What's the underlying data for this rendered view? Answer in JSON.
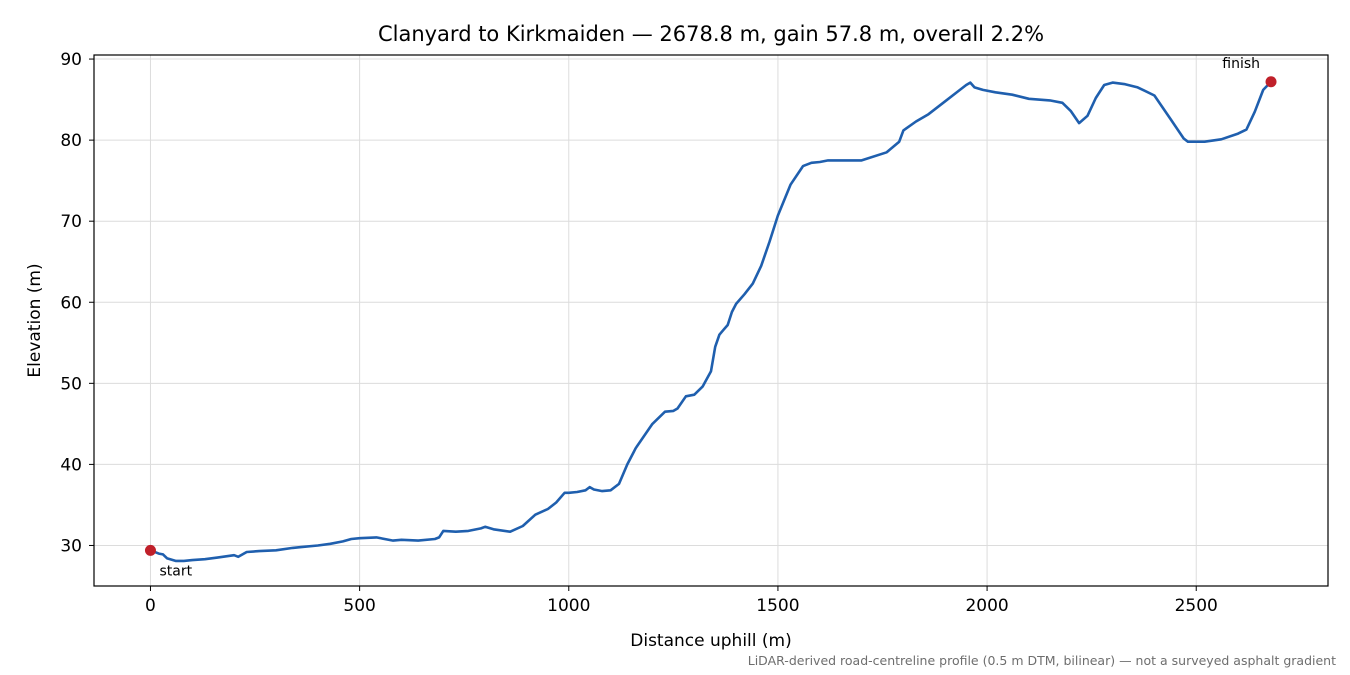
{
  "chart_data": {
    "type": "line",
    "title": "Clanyard to Kirkmaiden — 2678.8 m, gain 57.8 m, overall 2.2%",
    "xlabel": "Distance uphill (m)",
    "ylabel": "Elevation (m)",
    "xlim": [
      -135,
      2815
    ],
    "ylim": [
      25,
      90.5
    ],
    "grid": true,
    "x_ticks": [
      0,
      500,
      1000,
      1500,
      2000,
      2500
    ],
    "y_ticks": [
      30,
      40,
      50,
      60,
      70,
      80,
      90
    ],
    "x_tick_labels": [
      "0",
      "500",
      "1000",
      "1500",
      "2000",
      "2500"
    ],
    "y_tick_labels": [
      "30",
      "40",
      "50",
      "60",
      "70",
      "80",
      "90"
    ],
    "series": [
      {
        "color": "#1f5fae",
        "x": [
          0,
          20,
          30,
          40,
          60,
          80,
          100,
          130,
          160,
          200,
          210,
          230,
          260,
          300,
          340,
          360,
          400,
          430,
          460,
          480,
          500,
          540,
          580,
          600,
          640,
          680,
          690,
          700,
          730,
          760,
          790,
          800,
          820,
          860,
          890,
          920,
          950,
          970,
          990,
          1000,
          1020,
          1040,
          1050,
          1060,
          1080,
          1100,
          1120,
          1140,
          1160,
          1200,
          1230,
          1250,
          1260,
          1280,
          1300,
          1320,
          1340,
          1350,
          1360,
          1370,
          1380,
          1390,
          1400,
          1420,
          1440,
          1460,
          1480,
          1500,
          1530,
          1560,
          1580,
          1600,
          1620,
          1650,
          1700,
          1760,
          1790,
          1800,
          1830,
          1860,
          1900,
          1930,
          1950,
          1960,
          1970,
          1990,
          2020,
          2060,
          2100,
          2150,
          2180,
          2200,
          2220,
          2240,
          2260,
          2280,
          2300,
          2330,
          2360,
          2400,
          2440,
          2470,
          2480,
          2520,
          2560,
          2600,
          2620,
          2640,
          2660,
          2678.8
        ],
        "y": [
          29.4,
          29.0,
          28.9,
          28.4,
          28.1,
          28.1,
          28.2,
          28.3,
          28.5,
          28.8,
          28.6,
          29.2,
          29.3,
          29.4,
          29.7,
          29.8,
          30.0,
          30.2,
          30.5,
          30.8,
          30.9,
          31.0,
          30.6,
          30.7,
          30.6,
          30.8,
          31.0,
          31.8,
          31.7,
          31.8,
          32.1,
          32.3,
          32.0,
          31.7,
          32.4,
          33.8,
          34.5,
          35.3,
          36.5,
          36.5,
          36.6,
          36.8,
          37.2,
          36.9,
          36.7,
          36.8,
          37.6,
          40.0,
          42.0,
          45.0,
          46.5,
          46.6,
          46.9,
          48.4,
          48.6,
          49.6,
          51.5,
          54.5,
          56.0,
          56.6,
          57.2,
          58.8,
          59.8,
          61.0,
          62.3,
          64.5,
          67.5,
          70.7,
          74.5,
          76.8,
          77.2,
          77.3,
          77.5,
          77.5,
          77.5,
          78.5,
          79.8,
          81.2,
          82.3,
          83.2,
          84.8,
          86.0,
          86.8,
          87.1,
          86.5,
          86.2,
          85.9,
          85.6,
          85.1,
          84.9,
          84.6,
          83.6,
          82.1,
          83.0,
          85.2,
          86.8,
          87.1,
          86.9,
          86.5,
          85.5,
          82.5,
          80.2,
          79.8,
          79.8,
          80.1,
          80.8,
          81.3,
          83.5,
          86.2,
          87.2
        ]
      }
    ],
    "annotations": [
      {
        "text": "start",
        "x": 0,
        "y": 29.4,
        "color": "#c0202a"
      },
      {
        "text": "finish",
        "x": 2678.8,
        "y": 87.2,
        "color": "#c0202a"
      }
    ],
    "footnote": "LiDAR-derived road-centreline profile (0.5 m DTM, bilinear) — not a surveyed asphalt gradient"
  }
}
